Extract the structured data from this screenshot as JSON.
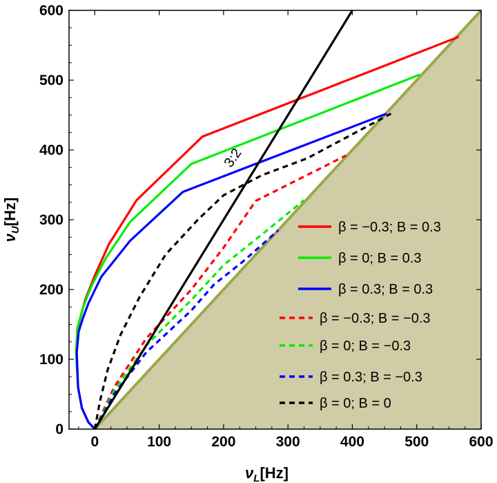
{
  "chart_data": {
    "type": "line",
    "title": "",
    "xlabel": "ν",
    "xlabel_sub": "L",
    "xlabel_unit": "[Hz]",
    "ylabel": "ν",
    "ylabel_sub": "U",
    "ylabel_unit": "[Hz]",
    "xlim": [
      -40,
      600
    ],
    "ylim": [
      0,
      600
    ],
    "xticks": [
      0,
      100,
      200,
      300,
      400,
      500,
      600
    ],
    "yticks": [
      0,
      100,
      200,
      300,
      400,
      500,
      600
    ],
    "grid": false,
    "legend_position": "right",
    "shaded_region": {
      "description_label": "",
      "color": "#cfcca6",
      "edge_color": "#9aa84a",
      "boundary": "y=x"
    },
    "annotations": [
      {
        "text": "3:2",
        "x": 220,
        "y": 385
      }
    ],
    "series": [
      {
        "name": "β = −0.3; B = 0.3",
        "color": "#ff0000",
        "dash": "solid",
        "x": [
          0,
          -10,
          -20,
          -26,
          -29,
          -25,
          -15,
          0,
          22,
          65,
          167,
          565
        ],
        "y": [
          0,
          10,
          30,
          60,
          110,
          150,
          185,
          220,
          265,
          328,
          419,
          562
        ]
      },
      {
        "name": "β = 0; B = 0.3",
        "color": "#00ee00",
        "dash": "solid",
        "x": [
          0,
          -10,
          -20,
          -26,
          -29,
          -27,
          -18,
          -5,
          17,
          55,
          150,
          505
        ],
        "y": [
          0,
          10,
          30,
          60,
          110,
          145,
          175,
          205,
          245,
          297,
          380,
          508
        ]
      },
      {
        "name": "β = 0.3; B = 0.3",
        "color": "#0000ff",
        "dash": "solid",
        "x": [
          0,
          -10,
          -20,
          -26,
          -28,
          -25,
          -18,
          -10,
          10,
          55,
          137,
          453
        ],
        "y": [
          0,
          10,
          30,
          60,
          110,
          140,
          160,
          180,
          218,
          270,
          340,
          452
        ]
      },
      {
        "name": "β = −0.3; B = −0.3",
        "color": "#ff0000",
        "dash": "dashed",
        "x": [
          0,
          30,
          80,
          150,
          200,
          250,
          390
        ],
        "y": [
          0,
          60,
          130,
          200,
          260,
          327,
          392
        ]
      },
      {
        "name": "β = 0; B = −0.3",
        "color": "#00ee00",
        "dash": "dashed",
        "x": [
          0,
          30,
          80,
          150,
          200,
          265,
          325
        ],
        "y": [
          0,
          55,
          120,
          185,
          235,
          283,
          328
        ]
      },
      {
        "name": "β = 0.3; B = −0.3",
        "color": "#0000ff",
        "dash": "dashed",
        "x": [
          0,
          30,
          80,
          150,
          185,
          230,
          285
        ],
        "y": [
          0,
          50,
          110,
          170,
          207,
          240,
          285
        ]
      },
      {
        "name": "β = 0; B = 0",
        "color": "#000000",
        "dash": "dashed",
        "x": [
          0,
          8,
          20,
          40,
          70,
          110,
          160,
          200,
          260,
          330,
          460
        ],
        "y": [
          0,
          40,
          85,
          135,
          190,
          250,
          300,
          335,
          364,
          388,
          452
        ]
      },
      {
        "name": "3:2",
        "color": "#000000",
        "dash": "solid",
        "legend": false,
        "x": [
          0,
          60,
          150,
          230,
          300,
          360,
          400
        ],
        "y": [
          0,
          90,
          225,
          345,
          450,
          540,
          600
        ]
      }
    ]
  }
}
